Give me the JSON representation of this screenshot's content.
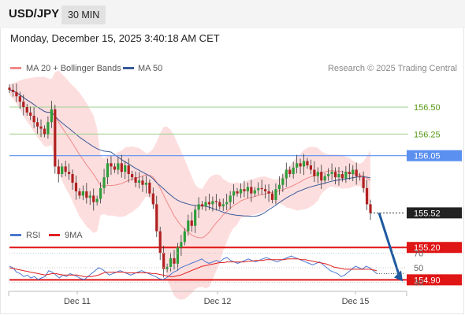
{
  "header": {
    "symbol": "USD/JPY",
    "timeframe": "30 MIN"
  },
  "datetime": "Monday, December 15, 2025 3:40:18 AM CET",
  "legend": {
    "ma20_bb": {
      "label": "MA 20 + Bollinger Bands",
      "color": "#f08a8a"
    },
    "ma50": {
      "label": "MA 50",
      "color": "#3a5a9a"
    },
    "rsi": {
      "label": "RSI",
      "color": "#4a78d0"
    },
    "rsi_ma": {
      "label": "9MA",
      "color": "#e02020"
    }
  },
  "copyright": "Research © 2025 Trading Central",
  "colors": {
    "up_candle": "#2e9e3a",
    "down_candle": "#b02020",
    "bb_fill": "#fddede",
    "resistance": "#9fd18e",
    "pivot": "#5b8ff0",
    "support": "#e01515",
    "arrow": "#1f5aa0",
    "last_price_bg": "#222222"
  },
  "chart_data": [
    {
      "type": "candlestick",
      "title": "USD/JPY 30 MIN",
      "x_ticks": [
        "Dec 11",
        "Dec 12",
        "Dec 15"
      ],
      "ylim": [
        154.8,
        156.7
      ],
      "levels": [
        {
          "label": "156.50",
          "value": 156.5,
          "kind": "resistance"
        },
        {
          "label": "156.25",
          "value": 156.25,
          "kind": "resistance"
        },
        {
          "label": "156.05",
          "value": 156.05,
          "kind": "pivot"
        },
        {
          "label": "155.52",
          "value": 155.52,
          "kind": "last"
        },
        {
          "label": "155.20",
          "value": 155.2,
          "kind": "support"
        },
        {
          "label": "154.90",
          "value": 154.9,
          "kind": "support"
        }
      ],
      "forecast": {
        "from": 155.52,
        "to": 154.9
      },
      "close": [
        156.66,
        156.64,
        156.6,
        156.55,
        156.5,
        156.45,
        156.42,
        156.36,
        156.32,
        156.3,
        156.25,
        156.36,
        156.48,
        155.95,
        155.88,
        155.95,
        155.9,
        155.88,
        155.8,
        155.72,
        155.68,
        155.72,
        155.66,
        155.68,
        155.62,
        155.65,
        155.75,
        155.85,
        155.98,
        155.95,
        155.92,
        155.98,
        155.9,
        155.96,
        155.88,
        155.85,
        155.8,
        155.82,
        155.78,
        155.8,
        155.7,
        155.6,
        155.35,
        155.15,
        155.0,
        155.02,
        155.1,
        155.05,
        155.2,
        155.25,
        155.35,
        155.45,
        155.4,
        155.55,
        155.6,
        155.58,
        155.62,
        155.6,
        155.63,
        155.62,
        155.58,
        155.6,
        155.62,
        155.68,
        155.72,
        155.7,
        155.74,
        155.72,
        155.76,
        155.7,
        155.73,
        155.75,
        155.74,
        155.72,
        155.7,
        155.64,
        155.74,
        155.78,
        155.84,
        155.92,
        155.88,
        155.94,
        155.98,
        155.95,
        156.0,
        155.96,
        155.92,
        155.86,
        155.9,
        155.82,
        155.86,
        155.88,
        155.9,
        155.85,
        155.88,
        155.84,
        155.9,
        155.88,
        155.92,
        155.86,
        155.85,
        155.75,
        155.6,
        155.52
      ]
    },
    {
      "type": "line",
      "title": "RSI",
      "x_ticks": [
        "Dec 11",
        "Dec 12",
        "Dec 15"
      ],
      "yticks": [
        30,
        50,
        70
      ],
      "ylim": [
        20,
        80
      ],
      "series": [
        {
          "name": "RSI",
          "values": [
            52,
            50,
            44,
            42,
            38,
            40,
            36,
            38,
            34,
            36,
            38,
            46,
            44,
            40,
            36,
            40,
            38,
            42,
            40,
            38,
            35,
            34,
            38,
            42,
            46,
            50,
            48,
            44,
            40,
            42,
            44,
            46,
            44,
            42,
            40,
            42,
            44,
            46,
            44,
            42,
            40,
            38,
            35,
            34,
            36,
            40,
            44,
            46,
            50,
            52,
            54,
            56,
            58,
            60,
            62,
            58,
            56,
            58,
            60,
            58,
            62,
            64,
            60,
            58,
            56,
            58,
            60,
            62,
            60,
            58,
            60,
            62,
            64,
            62,
            60,
            58,
            60,
            62,
            64,
            66,
            64,
            62,
            60,
            58,
            56,
            54,
            56,
            58,
            54,
            50,
            46,
            44,
            42,
            38,
            40,
            44,
            48,
            52,
            50,
            48,
            52,
            50,
            46,
            42
          ]
        },
        {
          "name": "9MA",
          "values": [
            50,
            49,
            48,
            47,
            46,
            45,
            44,
            43,
            42,
            41,
            40,
            41,
            42,
            42,
            41,
            40,
            40,
            40,
            40,
            40,
            39,
            38,
            38,
            38,
            39,
            40,
            42,
            44,
            44,
            44,
            44,
            44,
            44,
            43,
            43,
            43,
            43,
            43,
            43,
            43,
            42,
            42,
            41,
            40,
            39,
            38,
            38,
            39,
            40,
            42,
            44,
            46,
            48,
            50,
            52,
            53,
            54,
            55,
            56,
            57,
            57,
            58,
            58,
            58,
            58,
            58,
            58,
            59,
            59,
            60,
            60,
            60,
            61,
            61,
            61,
            61,
            61,
            61,
            62,
            62,
            62,
            62,
            61,
            61,
            60,
            59,
            58,
            57,
            56,
            55,
            53,
            51,
            50,
            49,
            48,
            48,
            48,
            48,
            48,
            48,
            48,
            48,
            47,
            46
          ]
        }
      ]
    }
  ]
}
